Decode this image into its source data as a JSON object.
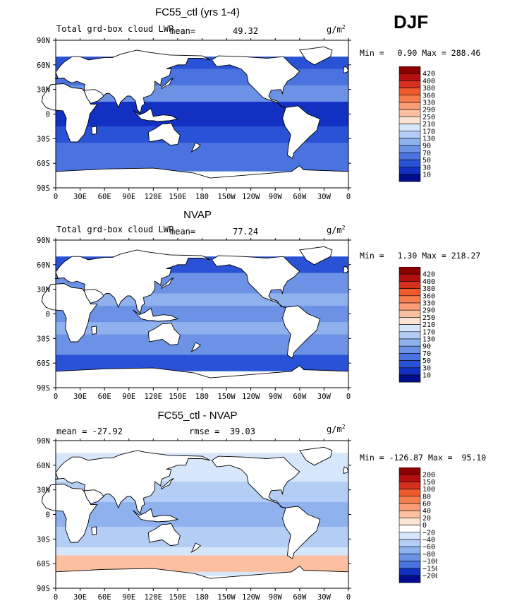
{
  "season_label": "DJF",
  "chart_data": [
    {
      "type": "heatmap",
      "title": "FC55_ctl (yrs 1-4)",
      "subtitle_left": "Total grd-box cloud LWP",
      "stat_label": "mean=",
      "stat_value": "49.32",
      "units": "g/m",
      "units_sup": "2",
      "min_label": "Min =",
      "min_value": "0.90",
      "max_label": "Max =",
      "max_value": "288.46",
      "field": "model",
      "x_ticks": [
        "0",
        "30E",
        "60E",
        "90E",
        "120E",
        "150E",
        "180",
        "150W",
        "120W",
        "90W",
        "60W",
        "30W",
        "0"
      ],
      "y_ticks": [
        "90N",
        "60N",
        "30N",
        "0",
        "30S",
        "60S",
        "90S"
      ],
      "colorbar": {
        "levels": [
          "420",
          "400",
          "380",
          "360",
          "330",
          "290",
          "250",
          "210",
          "170",
          "130",
          "90",
          "70",
          "50",
          "30",
          "10"
        ],
        "colors": [
          "#8b0000",
          "#b30f0f",
          "#d7301f",
          "#ef5a2a",
          "#f77f4f",
          "#fa9d77",
          "#fcc0a0",
          "#fde4d2",
          "#d6e6fb",
          "#b3cdf5",
          "#8fb1ee",
          "#6c92e6",
          "#4a73df",
          "#2a52d6",
          "#1230c2",
          "#000d8a"
        ]
      }
    },
    {
      "type": "heatmap",
      "title": "NVAP",
      "subtitle_left": "Total grd-box cloud LWP",
      "stat_label": "mean=",
      "stat_value": "77.24",
      "units": "g/m",
      "units_sup": "2",
      "min_label": "Min =",
      "min_value": "1.30",
      "max_label": "Max =",
      "max_value": "218.27",
      "field": "obs",
      "x_ticks": [
        "0",
        "30E",
        "60E",
        "90E",
        "120E",
        "150E",
        "180",
        "150W",
        "120W",
        "90W",
        "60W",
        "30W",
        "0"
      ],
      "y_ticks": [
        "90N",
        "60N",
        "30N",
        "0",
        "30S",
        "60S",
        "90S"
      ],
      "colorbar": {
        "levels": [
          "420",
          "400",
          "380",
          "360",
          "330",
          "290",
          "250",
          "210",
          "170",
          "130",
          "90",
          "70",
          "50",
          "30",
          "10"
        ],
        "colors": [
          "#8b0000",
          "#b30f0f",
          "#d7301f",
          "#ef5a2a",
          "#f77f4f",
          "#fa9d77",
          "#fcc0a0",
          "#fde4d2",
          "#d6e6fb",
          "#b3cdf5",
          "#8fb1ee",
          "#6c92e6",
          "#4a73df",
          "#2a52d6",
          "#1230c2",
          "#000d8a"
        ]
      }
    },
    {
      "type": "heatmap",
      "title": "FC55_ctl - NVAP",
      "stat_left_label": "mean =",
      "stat_left_value": "-27.92",
      "stat_label": "rmse =",
      "stat_value": "39.03",
      "units": "g/m",
      "units_sup": "2",
      "min_label": "Min =",
      "min_value": "-126.87",
      "max_label": "Max =",
      "max_value": "95.10",
      "field": "diff",
      "x_ticks": [
        "0",
        "30E",
        "60E",
        "90E",
        "120E",
        "150E",
        "180",
        "150W",
        "120W",
        "90W",
        "60W",
        "30W",
        "0"
      ],
      "y_ticks": [
        "90N",
        "60N",
        "30N",
        "0",
        "30S",
        "60S",
        "90S"
      ],
      "colorbar": {
        "levels": [
          "200",
          "150",
          "100",
          "80",
          "60",
          "40",
          "20",
          "0",
          "−20",
          "−40",
          "−60",
          "−80",
          "−100",
          "−150",
          "−200"
        ],
        "colors": [
          "#8b0000",
          "#b30f0f",
          "#d7301f",
          "#ef5a2a",
          "#f77f4f",
          "#fa9d77",
          "#fcc0a0",
          "#fde4d2",
          "#ffffff",
          "#d6e6fb",
          "#b3cdf5",
          "#8fb1ee",
          "#6c92e6",
          "#4a73df",
          "#1230c2",
          "#000d8a"
        ]
      }
    }
  ]
}
